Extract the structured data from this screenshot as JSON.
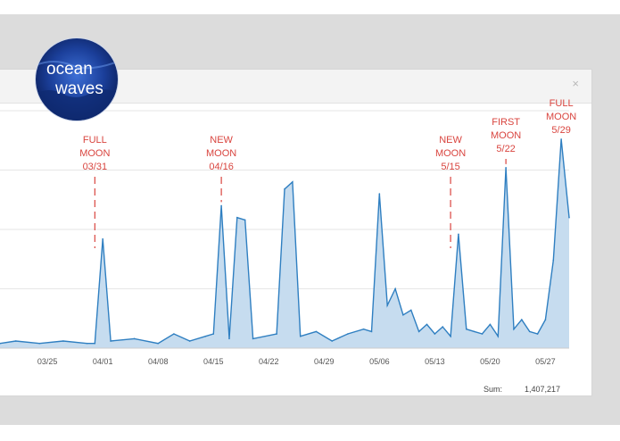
{
  "panel": {
    "close_icon": "close-icon",
    "close_glyph": "×"
  },
  "logo": {
    "line1": "ocean",
    "line2": "waves",
    "icon": "ocean-waves-logo"
  },
  "summary": {
    "label": "Sum:",
    "value": "1,407,217"
  },
  "colors": {
    "line": "#2f7fc1",
    "fill": "#c6dcef",
    "annotation": "#d9453f",
    "grid": "#e6e6e6"
  },
  "chart_data": {
    "type": "area",
    "xlabel": "",
    "ylabel": "",
    "grid": true,
    "x_tick_labels": [
      "03/25",
      "04/01",
      "04/08",
      "04/15",
      "04/22",
      "04/29",
      "05/06",
      "05/13",
      "05/20",
      "05/27"
    ],
    "x_range": [
      "03/19",
      "05/30"
    ],
    "y_range": [
      0,
      100
    ],
    "series": [
      {
        "x": [
          "03/19",
          "03/21",
          "03/24",
          "03/27",
          "03/30",
          "03/31",
          "04/01",
          "04/02",
          "04/05",
          "04/08",
          "04/10",
          "04/12",
          "04/14",
          "04/15",
          "04/16",
          "04/17",
          "04/18",
          "04/19",
          "04/20",
          "04/23",
          "04/24",
          "04/25",
          "04/26",
          "04/28",
          "04/30",
          "05/02",
          "05/04",
          "05/05",
          "05/06",
          "05/07",
          "05/08",
          "05/09",
          "05/10",
          "05/11",
          "05/12",
          "05/13",
          "05/14",
          "05/15",
          "05/16",
          "05/17",
          "05/18",
          "05/19",
          "05/20",
          "05/21",
          "05/22",
          "05/23",
          "05/24",
          "05/25",
          "05/26",
          "05/27",
          "05/28",
          "05/29",
          "05/30"
        ],
        "values": [
          2,
          3,
          2,
          3,
          2,
          2,
          46,
          3,
          4,
          2,
          6,
          3,
          5,
          6,
          60,
          4,
          55,
          54,
          4,
          6,
          67,
          70,
          5,
          7,
          3,
          6,
          8,
          7,
          65,
          18,
          25,
          14,
          16,
          7,
          10,
          6,
          9,
          5,
          48,
          8,
          7,
          6,
          10,
          5,
          76,
          8,
          12,
          7,
          6,
          12,
          37,
          88,
          55
        ]
      }
    ],
    "annotations": [
      {
        "lines": [
          "FULL",
          "MOON",
          "03/31"
        ],
        "x": "03/31"
      },
      {
        "lines": [
          "NEW",
          "MOON",
          "04/16"
        ],
        "x": "04/16"
      },
      {
        "lines": [
          "NEW",
          "MOON",
          "5/15"
        ],
        "x": "05/15"
      },
      {
        "lines": [
          "FIRST",
          "MOON",
          "5/22"
        ],
        "x": "05/22"
      },
      {
        "lines": [
          "FULL",
          "MOON",
          "5/29"
        ],
        "x": "05/29"
      }
    ]
  }
}
